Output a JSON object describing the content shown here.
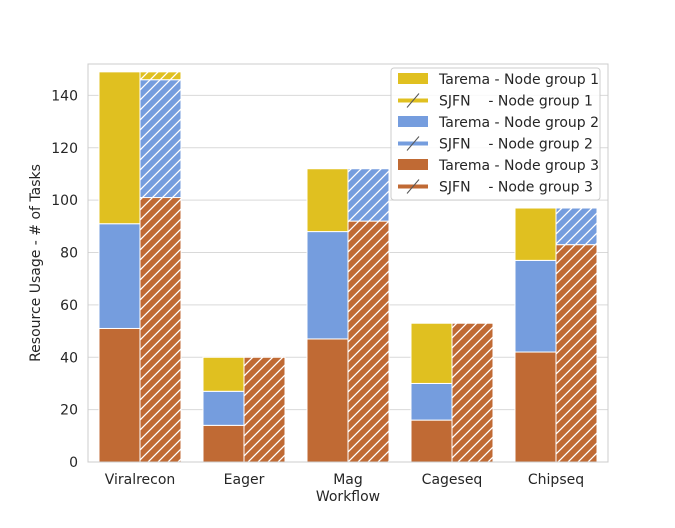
{
  "chart_data": {
    "type": "bar",
    "xlabel": "Workflow",
    "ylabel": "Resource Usage - # of Tasks",
    "ylim": [
      0,
      152
    ],
    "yticks": [
      0,
      20,
      40,
      60,
      80,
      100,
      120,
      140
    ],
    "grid": "horizontal",
    "legend_position": "top-right",
    "categories": [
      "Viralrecon",
      "Eager",
      "Mag",
      "Cageseq",
      "Chipseq"
    ],
    "stacking": "stacked (group 3 bottom, group 2 middle, group 1 top)",
    "series": [
      {
        "name": "Tarema - Node group 1",
        "method": "Tarema",
        "group": 1,
        "color": "#E0C020",
        "hatch": false,
        "values": [
          58,
          13,
          24,
          23,
          20
        ]
      },
      {
        "name": "SJFN    - Node group 1",
        "method": "SJFN",
        "group": 1,
        "color": "#E0C020",
        "hatch": true,
        "values": [
          3,
          0,
          0,
          0,
          0
        ]
      },
      {
        "name": "Tarema - Node group 2",
        "method": "Tarema",
        "group": 2,
        "color": "#759DDE",
        "hatch": false,
        "values": [
          40,
          13,
          41,
          14,
          35
        ]
      },
      {
        "name": "SJFN    - Node group 2",
        "method": "SJFN",
        "group": 2,
        "color": "#759DDE",
        "hatch": true,
        "values": [
          45,
          0,
          20,
          0,
          14
        ]
      },
      {
        "name": "Tarema - Node group 3",
        "method": "Tarema",
        "group": 3,
        "color": "#C06A34",
        "hatch": false,
        "values": [
          51,
          14,
          47,
          16,
          42
        ]
      },
      {
        "name": "SJFN    - Node group 3",
        "method": "SJFN",
        "group": 3,
        "color": "#C06A34",
        "hatch": true,
        "values": [
          101,
          40,
          92,
          53,
          83
        ]
      }
    ]
  }
}
